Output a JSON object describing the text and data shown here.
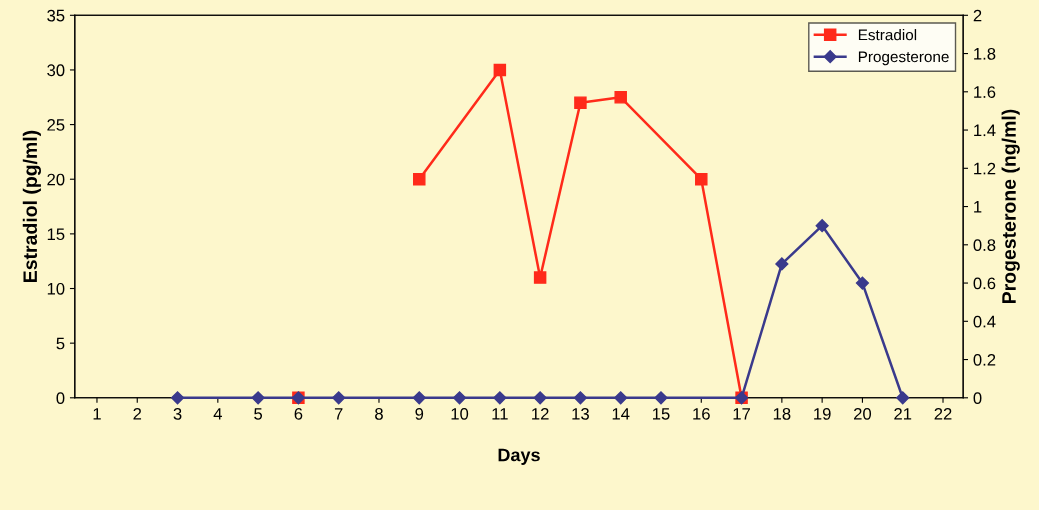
{
  "chart_data": {
    "type": "line",
    "xlabel": "Days",
    "ylabel": "Estradiol (pg/ml)",
    "y2label": "Progesterone (ng/ml)",
    "xlim": [
      0.45,
      22.5
    ],
    "xticks": [
      1,
      2,
      3,
      4,
      5,
      6,
      7,
      8,
      9,
      10,
      11,
      12,
      13,
      14,
      15,
      16,
      17,
      18,
      19,
      20,
      21,
      22
    ],
    "ylim": [
      0,
      35
    ],
    "yticks": [
      0,
      5,
      10,
      15,
      20,
      25,
      30,
      35
    ],
    "y2lim": [
      0,
      2
    ],
    "y2ticks": [
      0,
      0.2,
      0.4,
      0.6,
      0.8,
      1,
      1.2,
      1.4,
      1.6,
      1.8,
      2
    ],
    "grid": false,
    "legend": "top right",
    "series": [
      {
        "name": "Estradiol",
        "color": "#ff2a1a",
        "marker": "square",
        "x": [
          6,
          8,
          9,
          11,
          12,
          13,
          14,
          16,
          17
        ],
        "values": [
          0,
          null,
          20,
          30,
          11,
          27,
          27.5,
          20,
          0
        ]
      },
      {
        "name": "Progesterone",
        "color": "#3a3a8c",
        "marker": "diamond",
        "axis": "y2",
        "x": [
          3,
          5,
          6,
          7,
          9,
          10,
          11,
          12,
          13,
          14,
          15,
          17,
          18,
          19,
          20,
          21
        ],
        "values": [
          0,
          0,
          0,
          0,
          0,
          0,
          0,
          0,
          0,
          0,
          0,
          0,
          0.7,
          0.9,
          0.6,
          0
        ]
      }
    ]
  }
}
